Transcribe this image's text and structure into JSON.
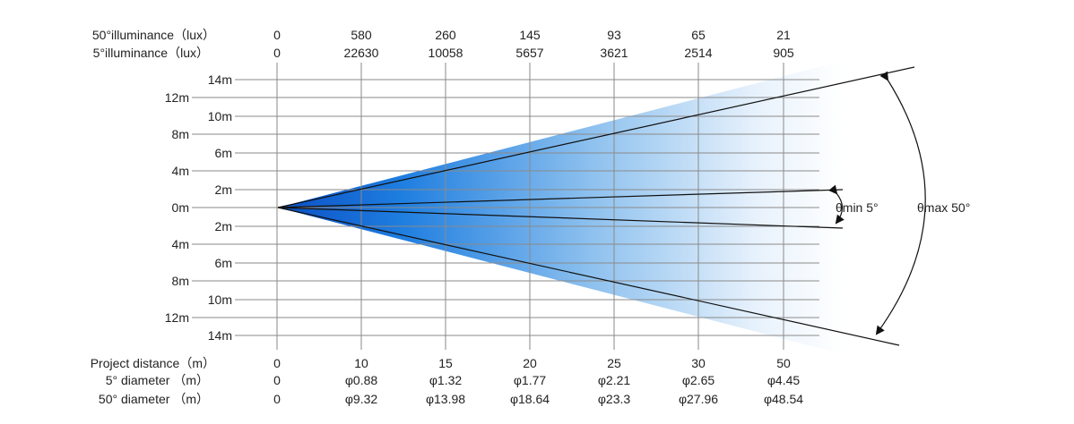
{
  "header": {
    "lux50_label": "50°illuminance（lux）",
    "lux5_label": "5°illuminance（lux）",
    "lux50_values": [
      "0",
      "580",
      "260",
      "145",
      "93",
      "65",
      "21"
    ],
    "lux5_values": [
      "0",
      "22630",
      "10058",
      "5657",
      "3621",
      "2514",
      "905"
    ]
  },
  "y_axis": {
    "labels": [
      "14m",
      "12m",
      "10m",
      "8m",
      "6m",
      "4m",
      "2m",
      "0m",
      "2m",
      "4m",
      "6m",
      "8m",
      "10m",
      "12m",
      "14m"
    ]
  },
  "footer": {
    "distance_label": "Project distance（m）",
    "d5_label": "5° diameter （m）",
    "d50_label": "50° diameter （m）",
    "distances": [
      "0",
      "10",
      "15",
      "20",
      "25",
      "30",
      "50"
    ],
    "d5_values": [
      "0",
      "φ0.88",
      "φ1.32",
      "φ1.77",
      "φ2.21",
      "φ2.65",
      "φ4.45"
    ],
    "d50_values": [
      "0",
      "φ9.32",
      "φ13.98",
      "φ18.64",
      "φ23.3",
      "φ27.96",
      "φ48.54"
    ]
  },
  "annotations": {
    "min_angle": "θmin 5°",
    "max_angle": "θmax 50°"
  },
  "colors": {
    "beam_dark": "#0a5fd0",
    "beam_light": "#ffffff",
    "grid": "#8a8a8a"
  }
}
